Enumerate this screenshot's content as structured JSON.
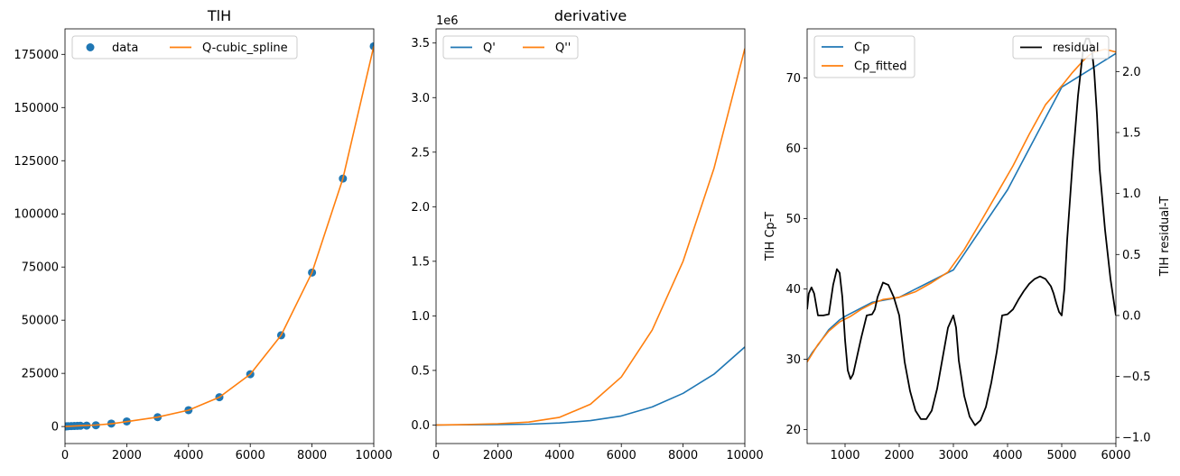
{
  "chart_data": [
    {
      "type": "line",
      "title": "TlH",
      "xlabel": "",
      "ylabel": "",
      "xlim": [
        0,
        10000
      ],
      "ylim": [
        -8000,
        187000
      ],
      "x_ticks": [
        0,
        2000,
        4000,
        6000,
        8000,
        10000
      ],
      "x_tick_labels": [
        "0",
        "2000",
        "4000",
        "6000",
        "8000",
        "10000"
      ],
      "y_ticks": [
        0,
        25000,
        50000,
        75000,
        100000,
        125000,
        150000,
        175000
      ],
      "y_tick_labels": [
        "0",
        "25000",
        "50000",
        "75000",
        "100000",
        "125000",
        "150000",
        "175000"
      ],
      "legend_position": "top-left",
      "series": [
        {
          "name": "data",
          "kind": "scatter",
          "color": "#1f77b4",
          "x": [
            0,
            50,
            100,
            200,
            300,
            400,
            500,
            700,
            1000,
            1500,
            2000,
            3000,
            4000,
            5000,
            6000,
            7000,
            8000,
            9000,
            10000
          ],
          "y": [
            0,
            100,
            150,
            200,
            250,
            300,
            350,
            450,
            600,
            1400,
            2400,
            4400,
            7700,
            13800,
            24600,
            42900,
            72400,
            116600,
            178800
          ]
        },
        {
          "name": "Q-cubic_spline",
          "kind": "line",
          "color": "#ff7f0e",
          "x": [
            0,
            500,
            1000,
            1500,
            2000,
            3000,
            4000,
            5000,
            6000,
            7000,
            8000,
            9000,
            10000
          ],
          "y": [
            0,
            400,
            700,
            1300,
            2300,
            4400,
            7700,
            13800,
            24600,
            42900,
            72400,
            116600,
            178800
          ]
        }
      ]
    },
    {
      "type": "line",
      "title": "derivative",
      "xlabel": "",
      "ylabel": "",
      "offset_text": "1e6",
      "xlim": [
        0,
        10000
      ],
      "ylim": [
        -0.17,
        3.63
      ],
      "x_ticks": [
        0,
        2000,
        4000,
        6000,
        8000,
        10000
      ],
      "x_tick_labels": [
        "0",
        "2000",
        "4000",
        "6000",
        "8000",
        "10000"
      ],
      "y_ticks": [
        0,
        0.5,
        1.0,
        1.5,
        2.0,
        2.5,
        3.0,
        3.5
      ],
      "y_tick_labels": [
        "0.0",
        "0.5",
        "1.0",
        "1.5",
        "2.0",
        "2.5",
        "3.0",
        "3.5"
      ],
      "legend_position": "top-left",
      "series": [
        {
          "name": "Q'",
          "color": "#1f77b4",
          "x": [
            0,
            1000,
            2000,
            3000,
            4000,
            5000,
            6000,
            7000,
            8000,
            9000,
            10000
          ],
          "y": [
            0,
            0.002,
            0.004,
            0.008,
            0.018,
            0.04,
            0.083,
            0.165,
            0.29,
            0.465,
            0.715
          ]
        },
        {
          "name": "Q''",
          "color": "#ff7f0e",
          "x": [
            0,
            1000,
            2000,
            3000,
            4000,
            5000,
            6000,
            7000,
            8000,
            9000,
            10000
          ],
          "y": [
            0,
            0.004,
            0.012,
            0.027,
            0.07,
            0.19,
            0.44,
            0.87,
            1.5,
            2.35,
            3.45
          ]
        }
      ]
    },
    {
      "type": "line",
      "title": "",
      "xlabel": "",
      "ylabel": "TlH Cp-T",
      "xlim": [
        300,
        6000
      ],
      "ylim": [
        18,
        77
      ],
      "x_ticks": [
        1000,
        2000,
        3000,
        4000,
        5000,
        6000
      ],
      "x_tick_labels": [
        "1000",
        "2000",
        "3000",
        "4000",
        "5000",
        "6000"
      ],
      "y_ticks": [
        20,
        30,
        40,
        50,
        60,
        70
      ],
      "y_tick_labels": [
        "20",
        "30",
        "40",
        "50",
        "60",
        "70"
      ],
      "legend_position": "top-left",
      "series": [
        {
          "name": "Cp",
          "color": "#1f77b4",
          "x": [
            300,
            400,
            500,
            700,
            900,
            1000,
            1500,
            2000,
            3000,
            4000,
            5000,
            6000
          ],
          "y": [
            29.8,
            31,
            32,
            34.2,
            35.6,
            36.1,
            38.1,
            38.8,
            42.7,
            54.1,
            68.7,
            73.5
          ]
        },
        {
          "name": "Cp_fitted",
          "color": "#ff7f0e",
          "x": [
            300,
            500,
            700,
            900,
            1100,
            1300,
            1500,
            1700,
            2000,
            2300,
            2600,
            2900,
            3200,
            3500,
            3800,
            4100,
            4400,
            4700,
            5000,
            5200,
            5400,
            5500,
            5600,
            5800,
            6000
          ],
          "y": [
            29.6,
            32.1,
            34,
            35.3,
            36.1,
            37.1,
            37.9,
            38.5,
            38.8,
            39.6,
            40.9,
            42.4,
            45.6,
            49.5,
            53.5,
            57.5,
            62,
            66.2,
            68.9,
            70.8,
            72.5,
            73.2,
            73.7,
            74.1,
            73.7
          ]
        }
      ],
      "secondary_axis": {
        "ylabel": "TlH residual-T",
        "ylim": [
          -1.05,
          2.35
        ],
        "y_ticks": [
          -1.0,
          -0.5,
          0.0,
          0.5,
          1.0,
          1.5,
          2.0
        ],
        "y_tick_labels": [
          "−1.0",
          "−0.5",
          "0.0",
          "0.5",
          "1.0",
          "1.5",
          "2.0"
        ],
        "legend_position": "top-right",
        "series": [
          {
            "name": "residual",
            "color": "#000000",
            "x": [
              300,
              330,
              380,
              430,
              500,
              600,
              700,
              780,
              850,
              900,
              950,
              1000,
              1050,
              1100,
              1150,
              1200,
              1300,
              1400,
              1500,
              1550,
              1600,
              1700,
              1800,
              1900,
              2000,
              2100,
              2200,
              2300,
              2400,
              2500,
              2600,
              2700,
              2800,
              2900,
              3000,
              3050,
              3100,
              3200,
              3300,
              3400,
              3500,
              3600,
              3700,
              3800,
              3900,
              4000,
              4100,
              4200,
              4300,
              4400,
              4500,
              4600,
              4700,
              4800,
              4850,
              4900,
              4950,
              5000,
              5050,
              5100,
              5200,
              5300,
              5400,
              5450,
              5500,
              5550,
              5600,
              5650,
              5700,
              5800,
              5900,
              6000
            ],
            "y": [
              0.05,
              0.18,
              0.23,
              0.18,
              0.0,
              0.0,
              0.01,
              0.25,
              0.38,
              0.35,
              0.15,
              -0.2,
              -0.45,
              -0.52,
              -0.48,
              -0.38,
              -0.18,
              0.0,
              0.01,
              0.05,
              0.15,
              0.27,
              0.25,
              0.15,
              0.0,
              -0.38,
              -0.62,
              -0.78,
              -0.85,
              -0.85,
              -0.78,
              -0.6,
              -0.35,
              -0.1,
              0.0,
              -0.1,
              -0.37,
              -0.66,
              -0.83,
              -0.9,
              -0.86,
              -0.75,
              -0.55,
              -0.3,
              0.0,
              0.01,
              0.05,
              0.13,
              0.2,
              0.26,
              0.3,
              0.32,
              0.3,
              0.24,
              0.18,
              0.1,
              0.03,
              0.0,
              0.22,
              0.62,
              1.25,
              1.8,
              2.2,
              2.27,
              2.27,
              2.2,
              2.0,
              1.65,
              1.2,
              0.7,
              0.3,
              0.0
            ]
          }
        ]
      }
    }
  ]
}
